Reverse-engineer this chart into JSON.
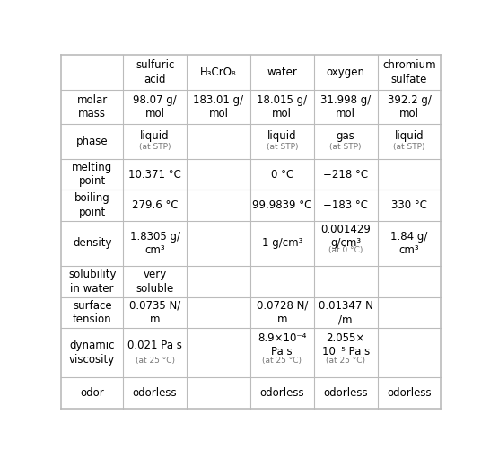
{
  "columns": [
    "",
    "sulfuric\nacid",
    "H₃CrO₈",
    "water",
    "oxygen",
    "chromium\nsulfate"
  ],
  "rows": [
    {
      "label": "molar\nmass",
      "values": [
        "98.07 g/\nmol",
        "183.01 g/\nmol",
        "18.015 g/\nmol",
        "31.998 g/\nmol",
        "392.2 g/\nmol"
      ]
    },
    {
      "label": "phase",
      "values": [
        "liquid|(at STP)",
        "",
        "liquid|(at STP)",
        "gas|(at STP)",
        "liquid|(at STP)"
      ]
    },
    {
      "label": "melting\npoint",
      "values": [
        "10.371 °C",
        "",
        "0 °C",
        "−218 °C",
        ""
      ]
    },
    {
      "label": "boiling\npoint",
      "values": [
        "279.6 °C",
        "",
        "99.9839 °C",
        "−183 °C",
        "330 °C"
      ]
    },
    {
      "label": "density",
      "values": [
        "1.8305 g/\ncm³",
        "",
        "1 g/cm³",
        "0.001429\ng/cm³|(at 0 °C)",
        "1.84 g/\ncm³"
      ]
    },
    {
      "label": "solubility\nin water",
      "values": [
        "very\nsoluble",
        "",
        "",
        "",
        ""
      ]
    },
    {
      "label": "surface\ntension",
      "values": [
        "0.0735 N/\nm",
        "",
        "0.0728 N/\nm",
        "0.01347 N\n/m",
        ""
      ]
    },
    {
      "label": "dynamic\nviscosity",
      "values": [
        "0.021 Pa s|(at 25 °C)",
        "",
        "8.9×10⁻⁴\nPa s|(at 25 °C)",
        "2.055×\n10⁻⁵ Pa s|(at 25 °C)",
        ""
      ]
    },
    {
      "label": "odor",
      "values": [
        "odorless",
        "",
        "odorless",
        "odorless",
        "odorless"
      ]
    }
  ],
  "line_color": "#bbbbbb",
  "text_color": "#000000",
  "small_text_color": "#777777",
  "font_size": 8.5,
  "small_font_size": 6.5,
  "bg_color": "#ffffff"
}
